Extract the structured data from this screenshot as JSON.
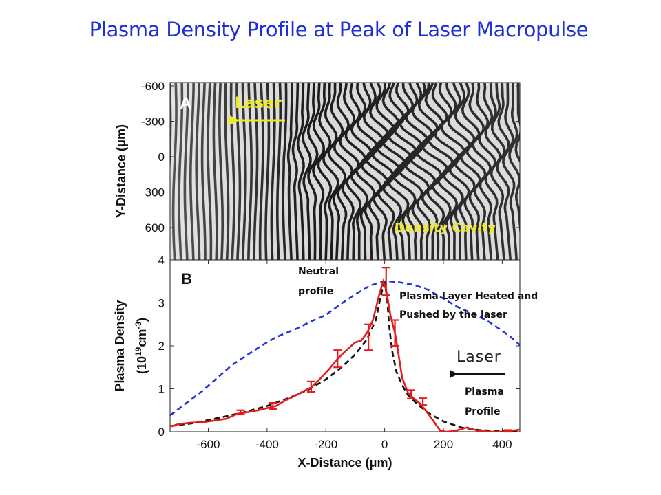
{
  "title": "Plasma Density Profile at Peak of Laser Macropulse",
  "panel_a": {
    "label": "A",
    "laser_label": "Laser",
    "cavity_label": "Density Cavity",
    "ylabel": "Y-Distance (μm)",
    "y_ticks": [
      "-600",
      "-300",
      "0",
      "300",
      "600"
    ],
    "label_color": "#f0ea1e"
  },
  "panel_b": {
    "label": "B",
    "neutral_label_1": "Neutral",
    "neutral_label_2": "profile",
    "heated_label_1": "Plasma Layer Heated and",
    "heated_label_2": "Pushed by the laser",
    "laser_label": "Laser",
    "plasma_label_1": "Plasma",
    "plasma_label_2": "Profile"
  },
  "chart_data": {
    "type": "line",
    "title": "",
    "xlabel": "X-Distance (μm)",
    "ylabel_line1": "Plasma Density",
    "ylabel_line2_pre": "(10",
    "ylabel_line2_exp": "19",
    "ylabel_line2_mid": "cm",
    "ylabel_line2_exp2": "-3",
    "ylabel_line2_post": ")",
    "xlim": [
      -730,
      460
    ],
    "ylim": [
      0,
      4
    ],
    "x_ticks": [
      -600,
      -400,
      -200,
      0,
      200,
      400
    ],
    "y_ticks": [
      0,
      1,
      2,
      3,
      4
    ],
    "series": [
      {
        "key": "neutral",
        "color": "#2233dd",
        "dash": true,
        "x": [
          -730,
          -620,
          -520,
          -420,
          -370,
          -300,
          -250,
          -200,
          -150,
          -100,
          -50,
          -20,
          0,
          20,
          50,
          100,
          150,
          200,
          250,
          300,
          350,
          400,
          430,
          460
        ],
        "y": [
          0.38,
          0.95,
          1.55,
          2.0,
          2.2,
          2.4,
          2.57,
          2.72,
          2.97,
          3.2,
          3.4,
          3.47,
          3.5,
          3.5,
          3.48,
          3.42,
          3.3,
          3.1,
          2.9,
          2.75,
          2.58,
          2.35,
          2.2,
          2.02
        ]
      },
      {
        "key": "fit",
        "color": "#111111",
        "dash": true,
        "x": [
          -730,
          -650,
          -560,
          -480,
          -400,
          -320,
          -260,
          -200,
          -150,
          -100,
          -60,
          -30,
          -15,
          -5,
          0,
          8,
          15,
          25,
          40,
          60,
          80,
          110,
          150,
          200,
          260,
          320,
          380,
          420,
          460
        ],
        "y": [
          0.13,
          0.2,
          0.33,
          0.45,
          0.6,
          0.8,
          0.98,
          1.22,
          1.48,
          1.8,
          2.15,
          2.6,
          3.1,
          3.4,
          3.45,
          3.15,
          2.5,
          1.9,
          1.4,
          1.08,
          0.85,
          0.65,
          0.43,
          0.24,
          0.1,
          0.04,
          0.02,
          0.01,
          0.01
        ]
      },
      {
        "key": "measured",
        "color": "#e31c1c",
        "dash": false,
        "x": [
          -730,
          -700,
          -660,
          -620,
          -580,
          -540,
          -500,
          -470,
          -430,
          -400,
          -370,
          -340,
          -310,
          -280,
          -250,
          -220,
          -190,
          -160,
          -130,
          -100,
          -80,
          -60,
          -40,
          -20,
          -5,
          5,
          20,
          35,
          45,
          60,
          80,
          100,
          120,
          150,
          190,
          210,
          240,
          280,
          320,
          360,
          400,
          440,
          460
        ],
        "y": [
          0.12,
          0.18,
          0.21,
          0.22,
          0.26,
          0.3,
          0.42,
          0.45,
          0.5,
          0.55,
          0.6,
          0.72,
          0.82,
          0.93,
          1.03,
          1.23,
          1.45,
          1.7,
          1.9,
          2.08,
          2.12,
          2.3,
          2.6,
          3.15,
          3.5,
          3.3,
          2.7,
          2.3,
          1.9,
          1.25,
          0.9,
          0.77,
          0.66,
          0.4,
          0.02,
          0.0,
          0.02,
          0.1,
          0.02,
          0.0,
          0.0,
          0.03,
          0.05
        ]
      }
    ],
    "error_bars": {
      "color": "#e31c1c",
      "points": [
        {
          "x": -490,
          "y": 0.45,
          "err": 0.05
        },
        {
          "x": -380,
          "y": 0.6,
          "err": 0.07
        },
        {
          "x": -250,
          "y": 1.05,
          "err": 0.12
        },
        {
          "x": -160,
          "y": 1.7,
          "err": 0.2
        },
        {
          "x": -55,
          "y": 2.2,
          "err": 0.3
        },
        {
          "x": 5,
          "y": 3.5,
          "err": 0.32
        },
        {
          "x": 35,
          "y": 2.3,
          "err": 0.3
        },
        {
          "x": 90,
          "y": 0.87,
          "err": 0.1
        },
        {
          "x": 130,
          "y": 0.7,
          "err": 0.08
        },
        {
          "x": 420,
          "y": 0.02,
          "err": 0.02
        }
      ]
    }
  }
}
